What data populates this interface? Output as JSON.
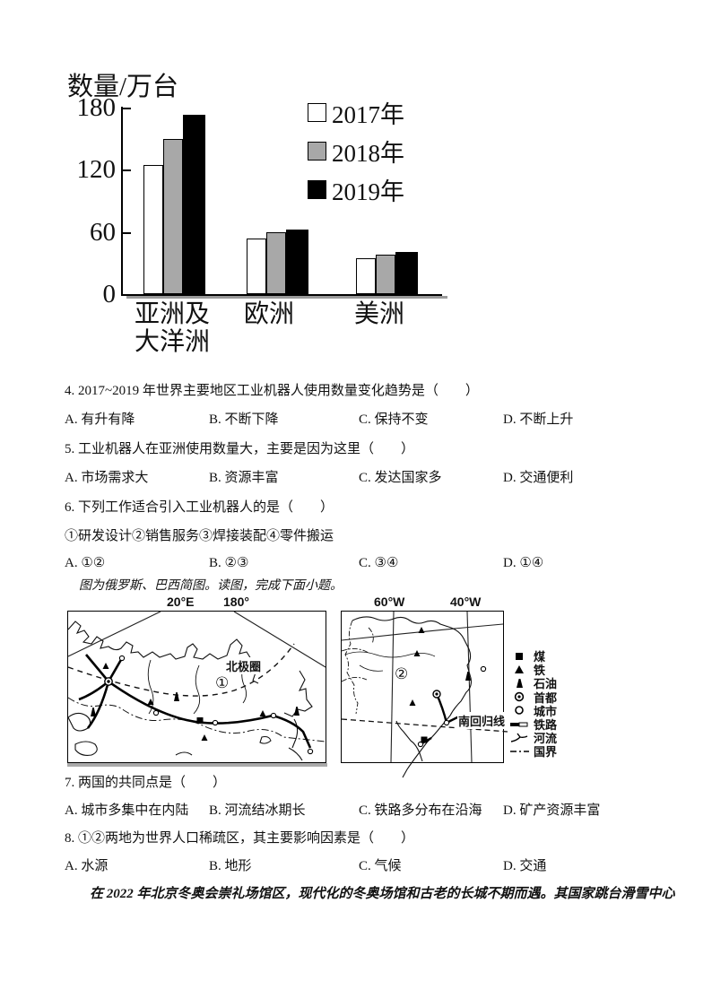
{
  "chart_data": {
    "type": "bar",
    "title": "数量/万台",
    "ylabel": "数量/万台",
    "categories": [
      "亚洲及大洋洲",
      "欧洲",
      "美洲"
    ],
    "categories_display": [
      [
        "亚洲及",
        "大洋洲"
      ],
      [
        "欧洲"
      ],
      [
        "美洲"
      ]
    ],
    "series": [
      {
        "name": "2017年",
        "color": "#ffffff",
        "values": [
          125,
          54,
          35
        ]
      },
      {
        "name": "2018年",
        "color": "#a8a8a8",
        "values": [
          150,
          60,
          38
        ]
      },
      {
        "name": "2019年",
        "color": "#000000",
        "values": [
          173,
          62,
          41
        ]
      }
    ],
    "yticks": [
      0,
      60,
      120,
      180
    ],
    "ylim": [
      0,
      180
    ],
    "grid": false,
    "legend_position": "top-right"
  },
  "questions": {
    "q4": {
      "stem": "4. 2017~2019 年世界主要地区工业机器人使用数量变化趋势是（　　）",
      "options": [
        "A. 有升有降",
        "B. 不断下降",
        "C. 保持不变",
        "D. 不断上升"
      ]
    },
    "q5": {
      "stem": "5. 工业机器人在亚洲使用数量大，主要是因为这里（　　）",
      "options": [
        "A. 市场需求大",
        "B. 资源丰富",
        "C. 发达国家多",
        "D. 交通便利"
      ]
    },
    "q6": {
      "stem": "6. 下列工作适合引入工业机器人的是（　　）",
      "subitems": "①研发设计②销售服务③焊接装配④零件搬运",
      "options": [
        "A. ①②",
        "B. ②③",
        "C. ③④",
        "D. ①④"
      ]
    },
    "q7": {
      "stem": "7. 两国的共同点是（　　）",
      "options": [
        "A. 城市多集中在内陆",
        "B. 河流结冰期长",
        "C. 铁路多分布在沿海",
        "D. 矿产资源丰富"
      ]
    },
    "q8": {
      "stem": "8. ①②两地为世界人口稀疏区，其主要影响因素是（　　）",
      "options": [
        "A. 水源",
        "B. 地形",
        "C. 气候",
        "D. 交通"
      ]
    }
  },
  "map_section": {
    "intro": "图为俄罗斯、巴西简图。读图，完成下面小题。",
    "russia_map": {
      "meridians": [
        "20°E",
        "180°"
      ],
      "arctic_label": "北极圈",
      "marker": "①"
    },
    "brazil_map": {
      "meridians": [
        "60°W",
        "40°W"
      ],
      "tropic_label": "南回归线",
      "marker": "②"
    },
    "legend": [
      {
        "symbol": "coal-square-icon",
        "label": "煤"
      },
      {
        "symbol": "iron-triangle-icon",
        "label": "铁"
      },
      {
        "symbol": "oil-derrick-icon",
        "label": "石油"
      },
      {
        "symbol": "capital-icon",
        "label": "首都"
      },
      {
        "symbol": "city-icon",
        "label": "城市"
      },
      {
        "symbol": "railway-icon",
        "label": "铁路"
      },
      {
        "symbol": "river-icon",
        "label": "河流"
      },
      {
        "symbol": "border-icon",
        "label": "国界"
      }
    ]
  },
  "closing_text": "在 2022 年北京冬奥会崇礼场馆区，现代化的冬奥场馆和古老的长城不期而遇。其国家跳台滑雪中心"
}
